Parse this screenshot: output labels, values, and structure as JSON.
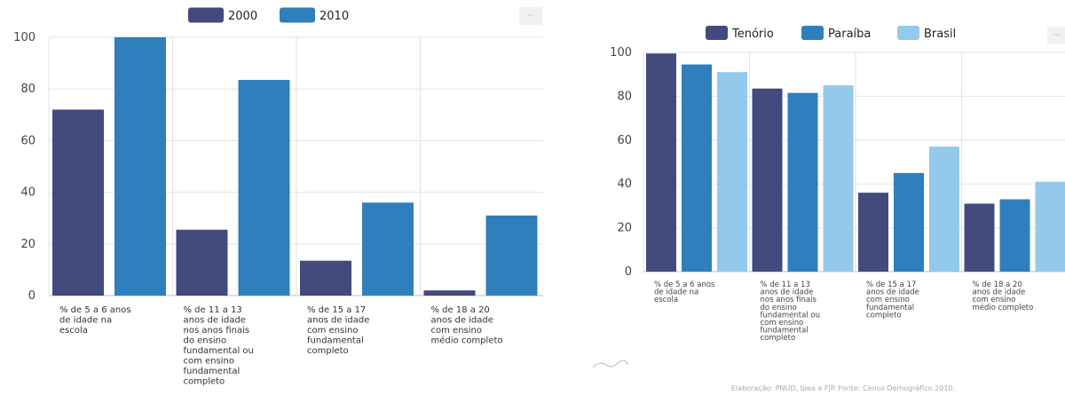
{
  "chart_data": [
    {
      "type": "bar",
      "categories": [
        [
          "% de 5 a 6 anos",
          "de idade na",
          "escola"
        ],
        [
          "% de 11 a 13",
          "anos de idade",
          "nos anos finais",
          "do ensino",
          "fundamental ou",
          "com ensino",
          "fundamental",
          "completo"
        ],
        [
          "% de 15 a 17",
          "anos de idade",
          "com ensino",
          "fundamental",
          "completo"
        ],
        [
          "% de 18 a 20",
          "anos de idade",
          "com ensino",
          "médio completo"
        ]
      ],
      "series": [
        {
          "name": "2000",
          "values": [
            72,
            25.5,
            13.5,
            2
          ],
          "color": "#434a7e"
        },
        {
          "name": "2010",
          "values": [
            100,
            83.5,
            36,
            31
          ],
          "color": "#2f7fbd"
        }
      ],
      "ylim": [
        0,
        100
      ],
      "yticks": [
        0,
        20,
        40,
        60,
        80,
        100
      ],
      "grid": true,
      "legend": "top"
    },
    {
      "type": "bar",
      "categories": [
        [
          "% de 5 a 6 anos",
          "de idade na",
          "escola"
        ],
        [
          "% de 11 a 13",
          "anos de idade",
          "nos anos finais",
          "do ensino",
          "fundamental ou",
          "com ensino",
          "fundamental",
          "completo"
        ],
        [
          "% de 15 a 17",
          "anos de idade",
          "com ensino",
          "fundamental",
          "completo"
        ],
        [
          "% de 18 a 20",
          "anos de idade",
          "com ensino",
          "médio completo"
        ]
      ],
      "series": [
        {
          "name": "Tenório",
          "values": [
            99.5,
            83.5,
            36,
            31
          ],
          "color": "#434a7e"
        },
        {
          "name": "Paraíba",
          "values": [
            94.5,
            81.5,
            45,
            33
          ],
          "color": "#2f7fbd"
        },
        {
          "name": "Brasil",
          "values": [
            91,
            85,
            57,
            41
          ],
          "color": "#93c9eb"
        }
      ],
      "ylim": [
        0,
        100
      ],
      "yticks": [
        0,
        20,
        40,
        60,
        80,
        100
      ],
      "grid": true,
      "legend": "top"
    }
  ],
  "ui": {
    "menu_icon": "ellipsis-icon",
    "logo_icon": "waves-logo-icon",
    "footer": "Elaboração: PNUD, Ipea e FJP. Fonte: Censo Demográfico 2010."
  }
}
